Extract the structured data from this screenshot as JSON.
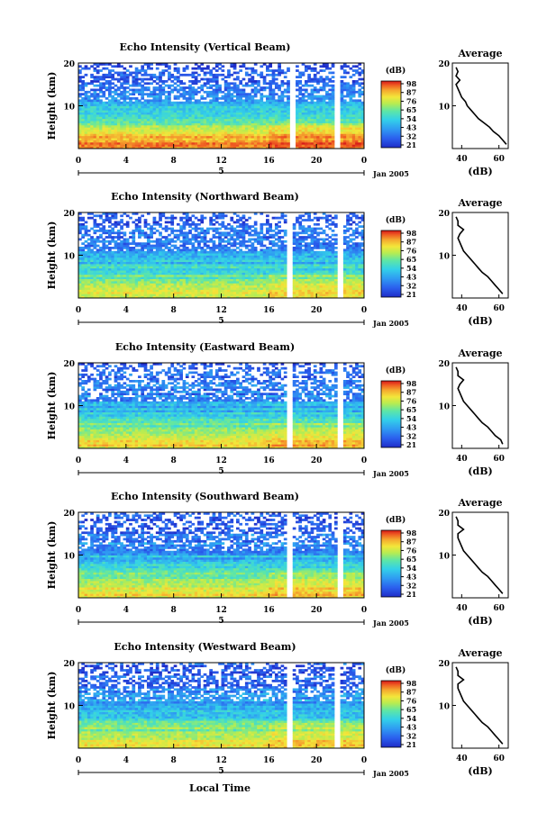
{
  "figure": {
    "xlabel": "Local Time",
    "date_label": "Jan 2005",
    "height_label": "Height (km)",
    "colorbar_unit": "(dB)",
    "colorbar_ticks": [
      "98",
      "87",
      "76",
      "65",
      "54",
      "43",
      "32",
      "21"
    ],
    "x_ticks": [
      "0",
      "4",
      "8",
      "12",
      "16",
      "20",
      "0"
    ],
    "y_ticks": [
      "20",
      "10"
    ],
    "day_label": "5",
    "avg_title": "Average",
    "avg_xlabel": "(dB)"
  },
  "colors": {
    "colormap": [
      "#1f2dc8",
      "#2b60ee",
      "#2f9cf2",
      "#33d1e8",
      "#5ee6a6",
      "#b6ec52",
      "#f3e63a",
      "#f5a92f",
      "#ef5a22",
      "#d41818"
    ]
  },
  "chart_data": [
    {
      "type": "heatmap",
      "title": "Echo Intensity (Vertical Beam)",
      "xlabel": "",
      "ylabel": "Height (km)",
      "xlim": [
        0,
        24
      ],
      "ylim": [
        0,
        20
      ],
      "zlim": [
        21,
        98
      ],
      "gaps_hours": [
        [
          17.7,
          18.3
        ],
        [
          21.6,
          22.0
        ]
      ],
      "notes_rows_db_by_height": [
        {
          "height_km": 1,
          "db": 88
        },
        {
          "height_km": 4,
          "db": 70
        },
        {
          "height_km": 8,
          "db": 50
        },
        {
          "height_km": 12,
          "db": 38
        },
        {
          "height_km": 16,
          "db": 30
        },
        {
          "height_km": 19,
          "db": 26
        }
      ],
      "average_profile": {
        "title": "Average",
        "xlabel": "(dB)",
        "xlim": [
          35,
          65
        ],
        "xticks": [
          40,
          60
        ],
        "yticks": [
          10,
          20
        ],
        "height_km": [
          1,
          2,
          3,
          4,
          5,
          6,
          7,
          8,
          9,
          10,
          11,
          12,
          13,
          14,
          15,
          16,
          17,
          18,
          19
        ],
        "db": [
          64,
          62,
          60,
          57,
          55,
          52,
          49,
          47,
          45,
          43,
          42,
          40,
          39,
          38,
          37,
          39,
          37,
          38,
          37
        ]
      }
    },
    {
      "type": "heatmap",
      "title": "Echo Intensity (Northward Beam)",
      "xlabel": "",
      "ylabel": "Height (km)",
      "xlim": [
        0,
        24
      ],
      "ylim": [
        0,
        20
      ],
      "zlim": [
        21,
        98
      ],
      "gaps_hours": [
        [
          17.5,
          18.1
        ],
        [
          21.8,
          22.2
        ]
      ],
      "notes_rows_db_by_height": [
        {
          "height_km": 1,
          "db": 72
        },
        {
          "height_km": 4,
          "db": 58
        },
        {
          "height_km": 8,
          "db": 46
        },
        {
          "height_km": 12,
          "db": 36
        },
        {
          "height_km": 16,
          "db": 30
        },
        {
          "height_km": 19,
          "db": 28
        }
      ],
      "average_profile": {
        "title": "Average",
        "xlabel": "(dB)",
        "xlim": [
          35,
          65
        ],
        "xticks": [
          40,
          60
        ],
        "yticks": [
          10,
          20
        ],
        "height_km": [
          1,
          2,
          3,
          4,
          5,
          6,
          7,
          8,
          9,
          10,
          11,
          12,
          13,
          14,
          15,
          16,
          17,
          18,
          19
        ],
        "db": [
          62,
          60,
          58,
          56,
          54,
          51,
          49,
          47,
          45,
          43,
          41,
          40,
          39,
          38,
          39,
          41,
          38,
          38,
          37
        ]
      }
    },
    {
      "type": "heatmap",
      "title": "Echo Intensity (Eastward Beam)",
      "xlabel": "",
      "ylabel": "Height (km)",
      "xlim": [
        0,
        24
      ],
      "ylim": [
        0,
        20
      ],
      "zlim": [
        21,
        98
      ],
      "gaps_hours": [
        [
          17.5,
          18.1
        ],
        [
          21.8,
          22.2
        ]
      ],
      "notes_rows_db_by_height": [
        {
          "height_km": 1,
          "db": 74
        },
        {
          "height_km": 4,
          "db": 60
        },
        {
          "height_km": 8,
          "db": 46
        },
        {
          "height_km": 12,
          "db": 36
        },
        {
          "height_km": 16,
          "db": 30
        },
        {
          "height_km": 19,
          "db": 28
        }
      ],
      "average_profile": {
        "title": "Average",
        "xlabel": "(dB)",
        "xlim": [
          35,
          65
        ],
        "xticks": [
          40,
          60
        ],
        "yticks": [
          10,
          20
        ],
        "height_km": [
          1,
          2,
          3,
          4,
          5,
          6,
          7,
          8,
          9,
          10,
          11,
          12,
          13,
          14,
          15,
          16,
          17,
          18,
          19
        ],
        "db": [
          62,
          61,
          58,
          56,
          54,
          51,
          49,
          47,
          45,
          43,
          41,
          40,
          39,
          38,
          39,
          41,
          38,
          38,
          37
        ]
      }
    },
    {
      "type": "heatmap",
      "title": "Echo Intensity (Southward Beam)",
      "xlabel": "",
      "ylabel": "Height (km)",
      "xlim": [
        0,
        24
      ],
      "ylim": [
        0,
        20
      ],
      "zlim": [
        21,
        98
      ],
      "gaps_hours": [
        [
          17.5,
          18.1
        ],
        [
          21.8,
          22.2
        ]
      ],
      "notes_rows_db_by_height": [
        {
          "height_km": 1,
          "db": 74
        },
        {
          "height_km": 4,
          "db": 60
        },
        {
          "height_km": 8,
          "db": 46
        },
        {
          "height_km": 12,
          "db": 36
        },
        {
          "height_km": 16,
          "db": 30
        },
        {
          "height_km": 19,
          "db": 28
        }
      ],
      "average_profile": {
        "title": "Average",
        "xlabel": "(dB)",
        "xlim": [
          35,
          65
        ],
        "xticks": [
          40,
          60
        ],
        "yticks": [
          10,
          20
        ],
        "height_km": [
          1,
          2,
          3,
          4,
          5,
          6,
          7,
          8,
          9,
          10,
          11,
          12,
          13,
          14,
          15,
          16,
          17,
          18,
          19
        ],
        "db": [
          62,
          60,
          58,
          56,
          54,
          51,
          49,
          47,
          45,
          43,
          41,
          40,
          39,
          38,
          38,
          41,
          38,
          38,
          37
        ]
      }
    },
    {
      "type": "heatmap",
      "title": "Echo Intensity (Westward Beam)",
      "xlabel": "Local Time",
      "ylabel": "Height (km)",
      "xlim": [
        0,
        24
      ],
      "ylim": [
        0,
        20
      ],
      "zlim": [
        21,
        98
      ],
      "gaps_hours": [
        [
          17.5,
          18.1
        ],
        [
          21.6,
          22.0
        ]
      ],
      "notes_rows_db_by_height": [
        {
          "height_km": 1,
          "db": 74
        },
        {
          "height_km": 4,
          "db": 60
        },
        {
          "height_km": 8,
          "db": 46
        },
        {
          "height_km": 12,
          "db": 36
        },
        {
          "height_km": 16,
          "db": 30
        },
        {
          "height_km": 19,
          "db": 28
        }
      ],
      "average_profile": {
        "title": "Average",
        "xlabel": "(dB)",
        "xlim": [
          35,
          65
        ],
        "xticks": [
          40,
          60
        ],
        "yticks": [
          10,
          20
        ],
        "height_km": [
          1,
          2,
          3,
          4,
          5,
          6,
          7,
          8,
          9,
          10,
          11,
          12,
          13,
          14,
          15,
          16,
          17,
          18,
          19
        ],
        "db": [
          62,
          60,
          58,
          56,
          54,
          51,
          49,
          47,
          45,
          43,
          41,
          40,
          39,
          38,
          38,
          41,
          38,
          38,
          37
        ]
      }
    }
  ]
}
